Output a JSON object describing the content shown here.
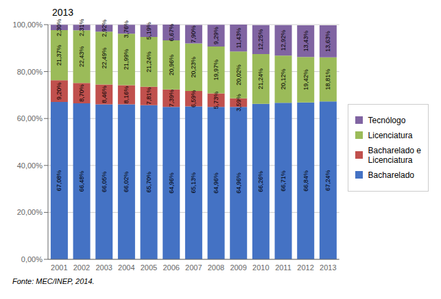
{
  "chart_data": {
    "type": "bar",
    "title": "2013",
    "annotations": [
      "Fonte: MEC/INEP, 2014."
    ],
    "categories": [
      "2001",
      "2002",
      "2003",
      "2004",
      "2005",
      "2006",
      "2007",
      "2008",
      "2009",
      "2010",
      "2011",
      "2012",
      "2013"
    ],
    "series": [
      {
        "name": "Bacharelado",
        "color": "#4472C4",
        "values": [
          67.08,
          66.48,
          66.05,
          66.02,
          65.7,
          64.96,
          65.13,
          64.96,
          64.96,
          66.26,
          66.71,
          66.84,
          67.24
        ],
        "value_labels": [
          "67,08%",
          "66,48%",
          "66,05%",
          "66,02%",
          "65,70%",
          "64,96%",
          "65,13%",
          "64,96%",
          "64,96%",
          "66,26%",
          "66,71%",
          "66,84%",
          "67,24%"
        ]
      },
      {
        "name": "Bacharelado e\nLicenciatura",
        "color": "#C0504D",
        "values": [
          9.2,
          8.7,
          8.46,
          8.16,
          7.81,
          7.39,
          6.59,
          5.73,
          3.59,
          0.0,
          0.0,
          0.0,
          0.0
        ],
        "value_labels": [
          "9,20%",
          "8,70%",
          "8,46%",
          "8,16%",
          "7,81%",
          "7,39%",
          "6,59%",
          "5,73%",
          "3,59%",
          null,
          null,
          null,
          null
        ]
      },
      {
        "name": "Licenciatura",
        "color": "#9BBB59",
        "values": [
          21.37,
          22.43,
          22.49,
          21.99,
          21.24,
          20.96,
          20.23,
          19.97,
          20.02,
          21.24,
          20.12,
          19.42,
          18.81
        ],
        "value_labels": [
          "21,37%",
          "22,43%",
          "22,49%",
          "21,99%",
          "21,24%",
          "20,96%",
          "20,23%",
          "19,97%",
          "20,02%",
          "21,24%",
          "20,12%",
          "19,42%",
          "18,81%"
        ]
      },
      {
        "name": "Tecnólogo",
        "color": "#8064A2",
        "values": [
          2.3,
          2.31,
          2.92,
          3.76,
          5.19,
          6.67,
          7.9,
          9.29,
          11.43,
          12.25,
          12.92,
          13.43,
          13.63
        ],
        "value_labels": [
          "2,30%",
          "2,31%",
          "2,92%",
          "3,76%",
          "5,19%",
          "6,67%",
          "7,90%",
          "9,29%",
          "11,43%",
          "12,25%",
          "12,92%",
          "13,43%",
          "13,63%"
        ]
      }
    ],
    "stacked": true,
    "data_labels": true,
    "ylim": [
      0,
      100
    ],
    "yticks": [
      {
        "value": 0,
        "label": "0,00%"
      },
      {
        "value": 20,
        "label": "20,00%"
      },
      {
        "value": 40,
        "label": "40,00%"
      },
      {
        "value": 60,
        "label": "60,00%"
      },
      {
        "value": 80,
        "label": "80,00%"
      },
      {
        "value": 100,
        "label": "100,00%"
      }
    ],
    "grid": true,
    "legend": "right"
  }
}
